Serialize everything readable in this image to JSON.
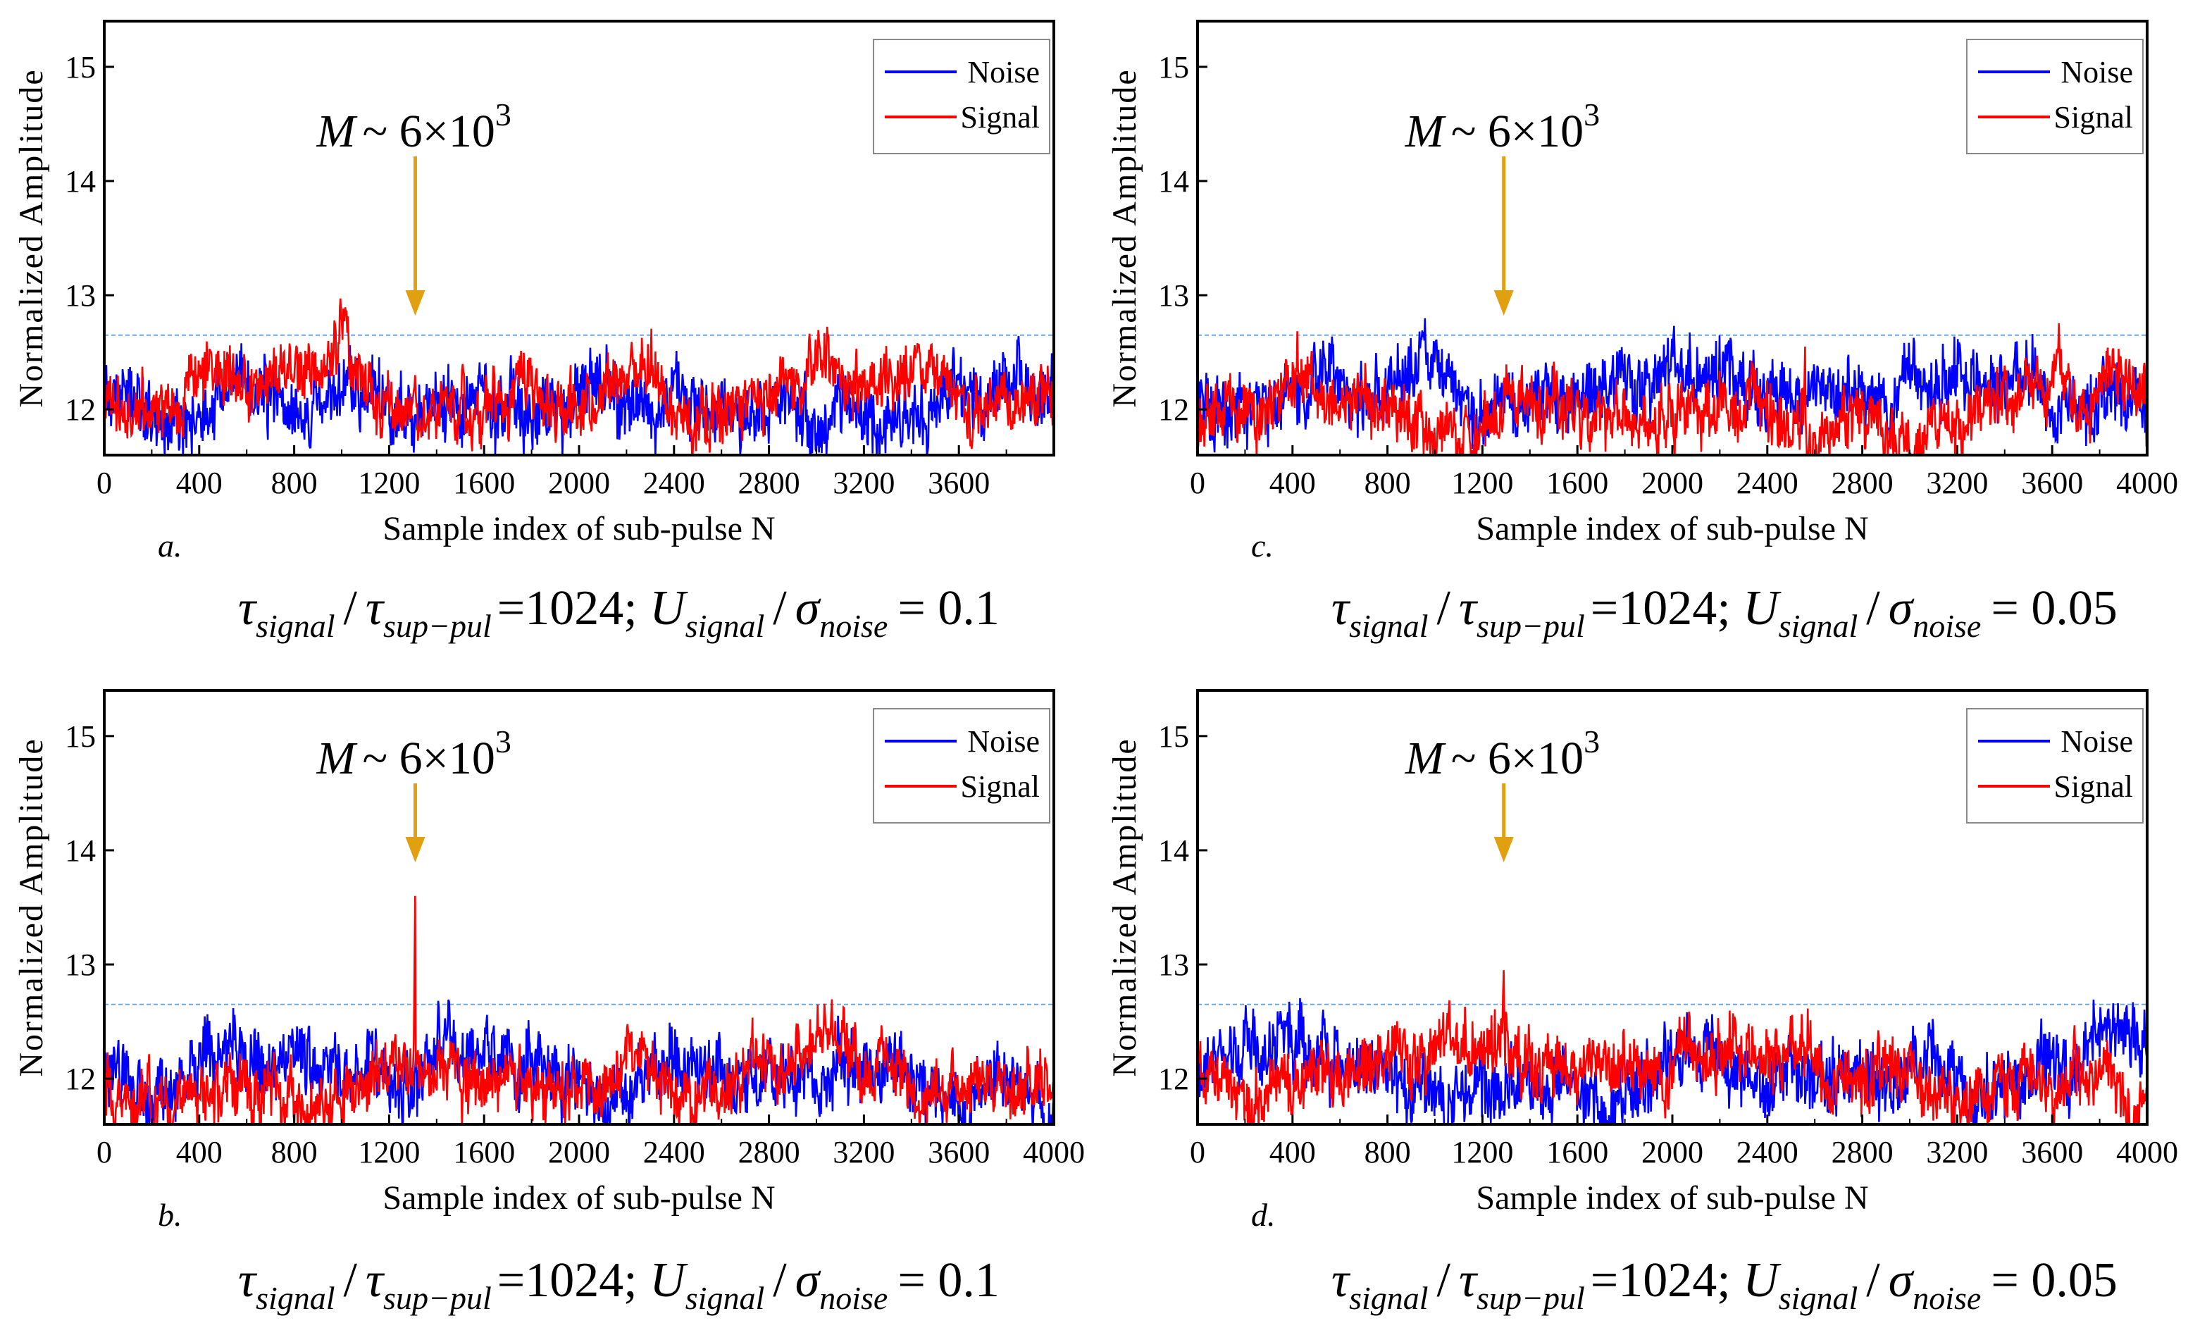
{
  "colors": {
    "noise": "#0000ff",
    "signal": "#ff0000",
    "threshold": "#6aa7e6",
    "arrow": "#e0a010"
  },
  "chart_data": [
    {
      "panel": "a.",
      "type": "line",
      "xlabel": "Sample index of sub-pulse N",
      "ylabel": "Normalized Amplitude",
      "xlim": [
        0,
        4000
      ],
      "ylim": [
        11.6,
        15.4
      ],
      "xticks": [
        "0",
        "400",
        "800",
        "1200",
        "1600",
        "2000",
        "2400",
        "2800",
        "3200",
        "3600"
      ],
      "yticks": [
        "12",
        "13",
        "14",
        "15"
      ],
      "threshold": 12.65,
      "grid": false,
      "legend_position": "top-right",
      "legend": [
        "Noise",
        "Signal"
      ],
      "annotation": {
        "M": "M",
        "tilde": "~ 6×10",
        "sup": "3",
        "x": 1310
      },
      "peak": {
        "x": 1310,
        "y": 12.3
      },
      "series": [
        {
          "name": "Noise",
          "baseline": 12.05,
          "amplitude": 0.45,
          "seed": 11
        },
        {
          "name": "Signal",
          "baseline": 12.0,
          "amplitude": 0.38,
          "seed": 12
        }
      ],
      "formula": {
        "tau": "τ",
        "sub1": "signal",
        "slash": "/",
        "sub2": "sup−pul",
        "eq1": "=1024; ",
        "U": "U",
        "sub3": "signal",
        "sigma": "σ",
        "sub4": "noise",
        "eq2": "= 0.1"
      }
    },
    {
      "panel": "c.",
      "type": "line",
      "xlabel": "Sample index of sub-pulse N",
      "ylabel": "Normalized Amplitude",
      "xlim": [
        0,
        4000
      ],
      "ylim": [
        11.6,
        15.4
      ],
      "xticks": [
        "0",
        "400",
        "800",
        "1200",
        "1600",
        "2000",
        "2400",
        "2800",
        "3200",
        "3600",
        "4000"
      ],
      "yticks": [
        "12",
        "13",
        "14",
        "15"
      ],
      "threshold": 12.65,
      "grid": false,
      "legend_position": "top-right",
      "legend": [
        "Noise",
        "Signal"
      ],
      "annotation": {
        "M": "M",
        "tilde": "~ 6×10",
        "sup": "3",
        "x": 1290
      },
      "peak": {
        "x": 2560,
        "y": 12.55
      },
      "series": [
        {
          "name": "Noise",
          "baseline": 12.0,
          "amplitude": 0.45,
          "seed": 21
        },
        {
          "name": "Signal",
          "baseline": 11.97,
          "amplitude": 0.4,
          "seed": 22
        }
      ],
      "formula": {
        "tau": "τ",
        "sub1": "signal",
        "slash": "/",
        "sub2": "sup−pul",
        "eq1": "=1024; ",
        "U": "U",
        "sub3": "signal",
        "sigma": "σ",
        "sub4": "noise",
        "eq2": "= 0.05"
      }
    },
    {
      "panel": "b.",
      "type": "line",
      "xlabel": "Sample index of sub-pulse N",
      "ylabel": "Normalized Amplitude",
      "xlim": [
        0,
        4000
      ],
      "ylim": [
        11.6,
        15.4
      ],
      "xticks": [
        "0",
        "400",
        "800",
        "1200",
        "1600",
        "2000",
        "2400",
        "2800",
        "3200",
        "3600",
        "4000"
      ],
      "yticks": [
        "12",
        "13",
        "14",
        "15"
      ],
      "threshold": 12.65,
      "grid": false,
      "legend_position": "top-right",
      "legend": [
        "Noise",
        "Signal"
      ],
      "annotation": {
        "M": "M",
        "tilde": "~ 6×10",
        "sup": "3",
        "x": 1310
      },
      "peak": {
        "x": 1310,
        "y": 13.6
      },
      "series": [
        {
          "name": "Noise",
          "baseline": 12.05,
          "amplitude": 0.45,
          "seed": 31
        },
        {
          "name": "Signal",
          "baseline": 12.0,
          "amplitude": 0.38,
          "seed": 32
        }
      ],
      "formula": {
        "tau": "τ",
        "sub1": "signal",
        "slash": "/",
        "sub2": "sup−pul",
        "eq1": "=1024; ",
        "U": "U",
        "sub3": "signal",
        "sigma": "σ",
        "sub4": "noise",
        "eq2": "= 0.1"
      }
    },
    {
      "panel": "d.",
      "type": "line",
      "xlabel": "Sample index of sub-pulse N",
      "ylabel": "Normalized Amplitude",
      "xlim": [
        0,
        4000
      ],
      "ylim": [
        11.6,
        15.4
      ],
      "xticks": [
        "0",
        "400",
        "800",
        "1200",
        "1600",
        "2000",
        "2400",
        "2800",
        "3200",
        "3600",
        "4000"
      ],
      "yticks": [
        "12",
        "13",
        "14",
        "15"
      ],
      "threshold": 12.65,
      "grid": false,
      "legend_position": "top-right",
      "legend": [
        "Noise",
        "Signal"
      ],
      "annotation": {
        "M": "M",
        "tilde": "~ 6×10",
        "sup": "3",
        "x": 1290
      },
      "peak": {
        "x": 1290,
        "y": 12.95
      },
      "series": [
        {
          "name": "Noise",
          "baseline": 12.0,
          "amplitude": 0.48,
          "seed": 41
        },
        {
          "name": "Signal",
          "baseline": 11.97,
          "amplitude": 0.42,
          "seed": 42
        }
      ],
      "formula": {
        "tau": "τ",
        "sub1": "signal",
        "slash": "/",
        "sub2": "sup−pul",
        "eq1": "=1024; ",
        "U": "U",
        "sub3": "signal",
        "sigma": "σ",
        "sub4": "noise",
        "eq2": "= 0.05"
      }
    }
  ]
}
